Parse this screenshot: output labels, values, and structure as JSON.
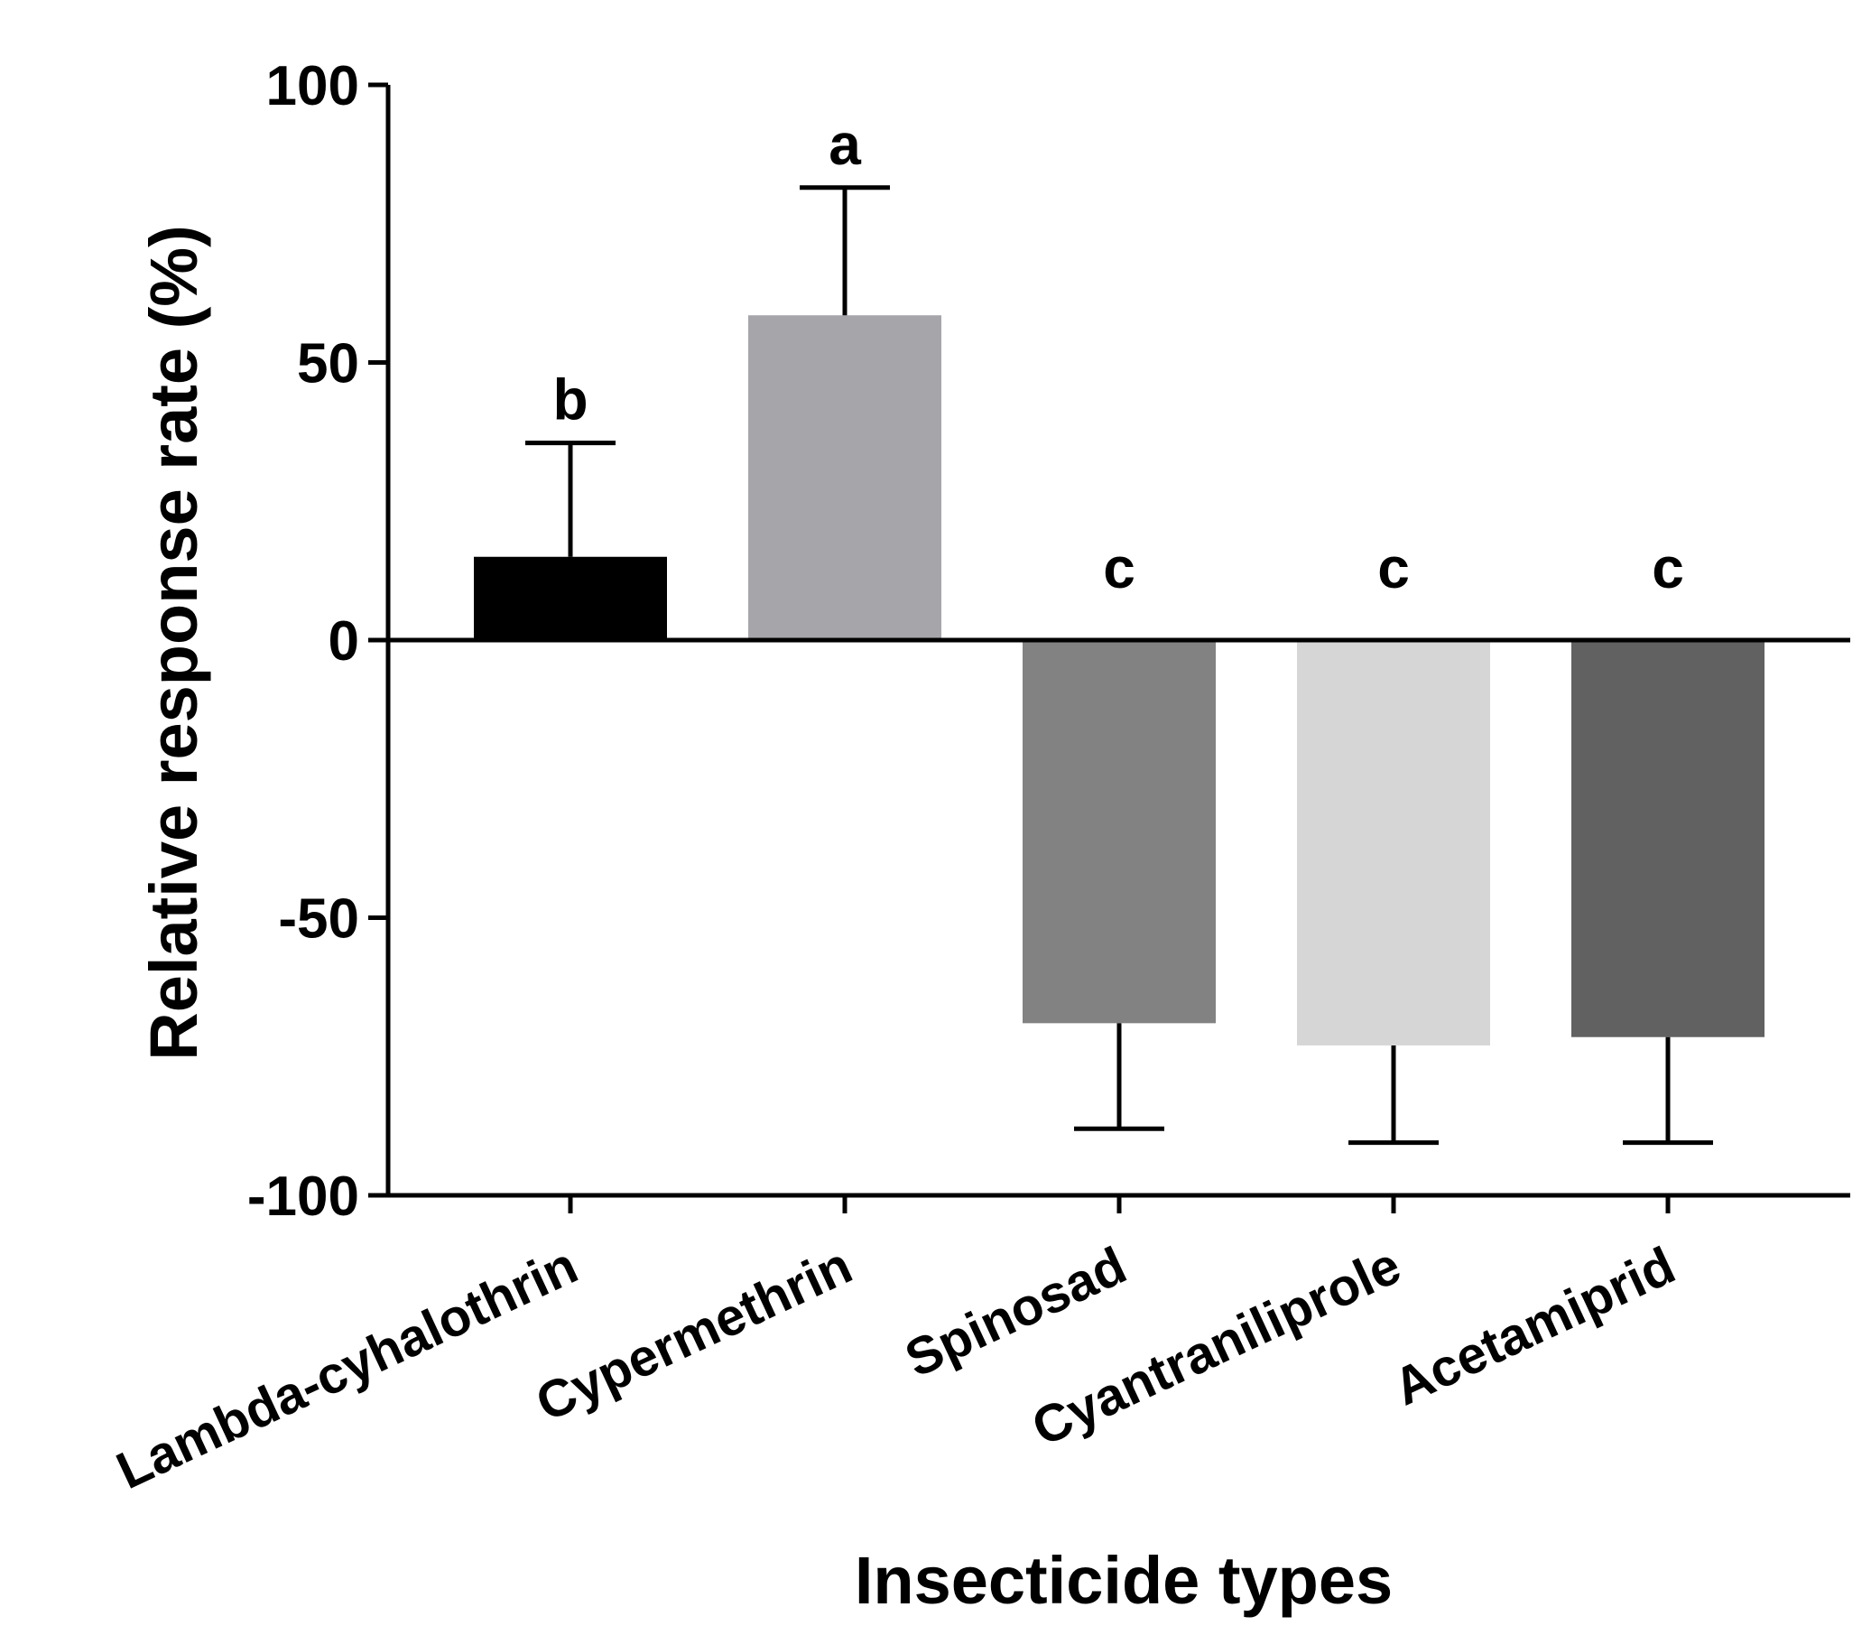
{
  "chart_data": {
    "type": "bar",
    "title": "",
    "xlabel": "Insecticide types",
    "ylabel": "Relative response rate (%)",
    "ylim": [
      -100,
      100
    ],
    "yticks": [
      100,
      50,
      0,
      -50,
      -100
    ],
    "yticks_labels": [
      "100",
      "50",
      "0",
      "-50",
      "-100"
    ],
    "categories": [
      "Lambda-cyhalothrin",
      "Cypermethrin",
      "Spinosad",
      "Cyantraniliprole",
      "Acetamiprid"
    ],
    "values": [
      15,
      58.5,
      -69,
      -73,
      -71.5
    ],
    "errors": [
      20.5,
      23,
      19,
      17.5,
      19
    ],
    "significance": [
      "b",
      "a",
      "c",
      "c",
      "c"
    ],
    "bar_colors": [
      "#000000",
      "#a6a5aa",
      "#828282",
      "#d6d6d6",
      "#616161"
    ],
    "grid": false,
    "legend": "none"
  }
}
